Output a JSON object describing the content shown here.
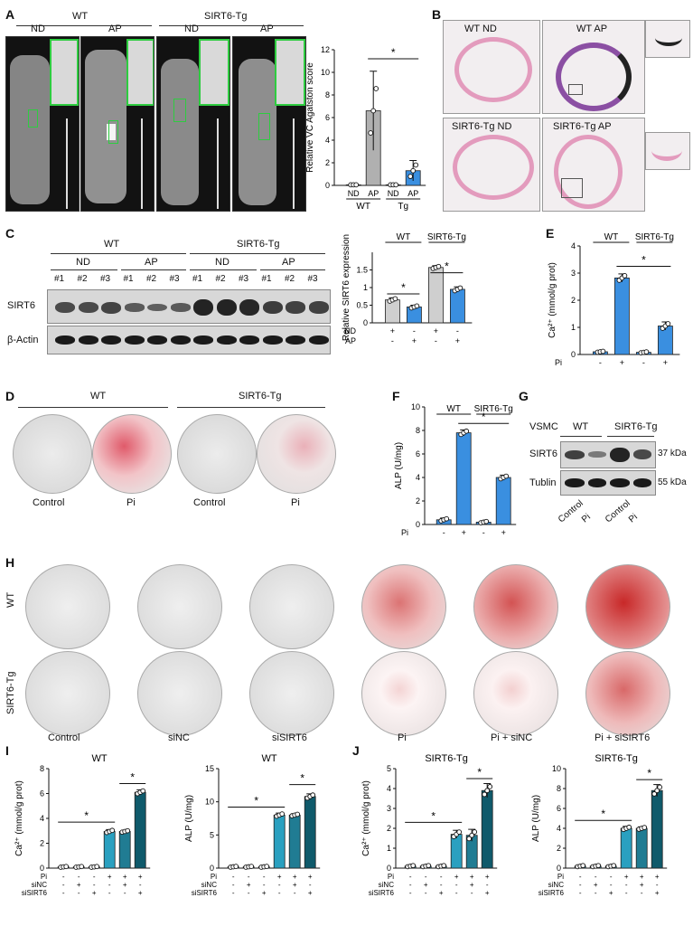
{
  "panel_letters": {
    "A": "A",
    "B": "B",
    "C": "C",
    "D": "D",
    "E": "E",
    "F": "F",
    "G": "G",
    "H": "H",
    "I": "I",
    "J": "J"
  },
  "panelA": {
    "wt": "WT",
    "tg": "SIRT6-Tg",
    "nd1": "ND",
    "ap1": "AP",
    "nd2": "ND",
    "ap2": "AP"
  },
  "panelB": {
    "wt_nd": "WT ND",
    "wt_ap": "WT AP",
    "tg_nd": "SIRT6-Tg ND",
    "tg_ap": "SIRT6-Tg AP"
  },
  "panelC": {
    "wt": "WT",
    "tg": "SIRT6-Tg",
    "nd1": "ND",
    "ap1": "AP",
    "nd2": "ND",
    "ap2": "AP",
    "lanes": [
      "#1",
      "#2",
      "#3",
      "#1",
      "#2",
      "#3",
      "#1",
      "#2",
      "#3",
      "#1",
      "#2",
      "#3"
    ],
    "sirt6": "SIRT6",
    "actin": "β-Actin",
    "band_sirt6": [
      0.45,
      0.45,
      0.5,
      0.25,
      0.2,
      0.25,
      0.9,
      0.9,
      0.85,
      0.6,
      0.55,
      0.55
    ]
  },
  "panelD": {
    "wt": "WT",
    "tg": "SIRT6-Tg",
    "c1": "Control",
    "p1": "Pi",
    "c2": "Control",
    "p2": "Pi"
  },
  "panelG": {
    "vsmc": "VSMC",
    "wt": "WT",
    "tg": "SIRT6-Tg",
    "sirt6": "SIRT6",
    "tublin": "Tublin",
    "kda37": "37 kDa",
    "kda55": "55 kDa",
    "lanes": [
      "Control",
      "Pi",
      "Control",
      "Pi"
    ]
  },
  "panelH": {
    "wt": "WT",
    "tg": "SIRT6-Tg",
    "cols": [
      "Control",
      "siNC",
      "siSIRT6",
      "Pi",
      "Pi + siNC",
      "Pi + siSIRT6"
    ],
    "stain_wt": [
      0,
      0,
      0,
      0.55,
      0.7,
      0.95
    ],
    "stain_tg": [
      0,
      0,
      0,
      0.1,
      0.12,
      0.6
    ]
  },
  "colors": {
    "grey": "#b0b0b0",
    "blue": "#3a8fe0",
    "lightgrey": "#cfcfcf",
    "teal1": "#2aa0c0",
    "teal2": "#207c93",
    "teal3": "#0f5a6b",
    "green": "#2ecc40"
  },
  "chart_data": [
    {
      "id": "A",
      "type": "bar",
      "ylabel": "Relative VC Agatston score",
      "ylim": [
        0,
        12
      ],
      "yticks": [
        0,
        2,
        4,
        6,
        8,
        10,
        12
      ],
      "categories": [
        "ND",
        "AP",
        "ND",
        "AP"
      ],
      "groups": [
        "WT",
        "Tg"
      ],
      "values": [
        0.05,
        6.6,
        0.05,
        1.3
      ],
      "errors": [
        0,
        3.5,
        0,
        0.9
      ],
      "sig": "*"
    },
    {
      "id": "C",
      "type": "bar",
      "ylabel": "Relative SIRT6 expression",
      "ylim": [
        0,
        2.0
      ],
      "yticks": [
        0,
        0.5,
        1.0,
        1.5
      ],
      "ytick_labels": [
        "0",
        "0.5",
        "1",
        "1.5"
      ],
      "groups": [
        "WT",
        "SIRT6-Tg"
      ],
      "rows": [
        {
          "label": "ND",
          "marks": [
            "+",
            "-",
            "+",
            "-"
          ]
        },
        {
          "label": "AP",
          "marks": [
            "-",
            "+",
            "-",
            "+"
          ]
        }
      ],
      "values": [
        0.65,
        0.45,
        1.57,
        0.95
      ],
      "errors": [
        0.06,
        0.05,
        0.05,
        0.07
      ],
      "sig": "*"
    },
    {
      "id": "E",
      "type": "bar",
      "ylabel": "Ca²⁺ (mmol/g prot)",
      "ylim": [
        0,
        4
      ],
      "yticks": [
        0,
        1,
        2,
        3,
        4
      ],
      "groups": [
        "WT",
        "SIRT6-Tg"
      ],
      "rows": [
        {
          "label": "Pi",
          "marks": [
            "-",
            "+",
            "-",
            "+"
          ]
        }
      ],
      "values": [
        0.1,
        2.82,
        0.08,
        1.05
      ],
      "errors": [
        0.03,
        0.15,
        0.03,
        0.15
      ],
      "sig": "*"
    },
    {
      "id": "F",
      "type": "bar",
      "ylabel": "ALP (U/mg)",
      "ylim": [
        0,
        10
      ],
      "yticks": [
        0,
        2,
        4,
        6,
        8,
        10
      ],
      "groups": [
        "WT",
        "SIRT6-Tg"
      ],
      "rows": [
        {
          "label": "Pi",
          "marks": [
            "-",
            "+",
            "-",
            "+"
          ]
        }
      ],
      "values": [
        0.4,
        7.8,
        0.2,
        4.0
      ],
      "errors": [
        0.15,
        0.25,
        0.1,
        0.2
      ],
      "sig": "*"
    },
    {
      "id": "I1",
      "type": "bar",
      "title": "WT",
      "ylabel": "Ca²⁺ (mmol/g prot)",
      "ylim": [
        0,
        8
      ],
      "yticks": [
        0,
        2,
        4,
        6,
        8
      ],
      "rows": [
        {
          "label": "Pi",
          "marks": [
            "-",
            "-",
            "-",
            "+",
            "+",
            "+"
          ]
        },
        {
          "label": "siNC",
          "marks": [
            "-",
            "+",
            "-",
            "-",
            "+",
            "-"
          ]
        },
        {
          "label": "siSIRT6",
          "marks": [
            "-",
            "-",
            "+",
            "-",
            "-",
            "+"
          ]
        }
      ],
      "values": [
        0.1,
        0.1,
        0.1,
        2.95,
        2.95,
        6.1
      ],
      "errors": [
        0.05,
        0.05,
        0.05,
        0.15,
        0.1,
        0.2
      ],
      "sig": "*"
    },
    {
      "id": "I2",
      "type": "bar",
      "title": "WT",
      "ylabel": "ALP (U/mg)",
      "ylim": [
        0,
        15
      ],
      "yticks": [
        0,
        5,
        10,
        15
      ],
      "rows": [
        {
          "label": "Pi",
          "marks": [
            "-",
            "-",
            "-",
            "+",
            "+",
            "+"
          ]
        },
        {
          "label": "siNC",
          "marks": [
            "-",
            "+",
            "-",
            "-",
            "+",
            "-"
          ]
        },
        {
          "label": "siSIRT6",
          "marks": [
            "-",
            "-",
            "+",
            "-",
            "-",
            "+"
          ]
        }
      ],
      "values": [
        0.2,
        0.2,
        0.2,
        8.0,
        8.0,
        10.8
      ],
      "errors": [
        0.1,
        0.1,
        0.1,
        0.3,
        0.2,
        0.4
      ],
      "sig": "*"
    },
    {
      "id": "J1",
      "type": "bar",
      "title": "SIRT6-Tg",
      "ylabel": "Ca²⁺ (mmol/g prot)",
      "ylim": [
        0,
        5
      ],
      "yticks": [
        0,
        1,
        2,
        3,
        4,
        5
      ],
      "rows": [
        {
          "label": "Pi",
          "marks": [
            "-",
            "-",
            "-",
            "+",
            "+",
            "+"
          ]
        },
        {
          "label": "siNC",
          "marks": [
            "-",
            "+",
            "-",
            "-",
            "+",
            "-"
          ]
        },
        {
          "label": "siSIRT6",
          "marks": [
            "-",
            "-",
            "+",
            "-",
            "-",
            "+"
          ]
        }
      ],
      "values": [
        0.1,
        0.1,
        0.1,
        1.7,
        1.65,
        3.9
      ],
      "errors": [
        0.05,
        0.05,
        0.05,
        0.2,
        0.3,
        0.35
      ],
      "sig": "*"
    },
    {
      "id": "J2",
      "type": "bar",
      "title": "SIRT6-Tg",
      "ylabel": "ALP (U/mg)",
      "ylim": [
        0,
        10
      ],
      "yticks": [
        0,
        2,
        4,
        6,
        8,
        10
      ],
      "rows": [
        {
          "label": "Pi",
          "marks": [
            "-",
            "-",
            "-",
            "+",
            "+",
            "+"
          ]
        },
        {
          "label": "siNC",
          "marks": [
            "-",
            "+",
            "-",
            "-",
            "+",
            "-"
          ]
        },
        {
          "label": "siSIRT6",
          "marks": [
            "-",
            "-",
            "+",
            "-",
            "-",
            "+"
          ]
        }
      ],
      "values": [
        0.2,
        0.2,
        0.2,
        4.0,
        4.0,
        7.8
      ],
      "errors": [
        0.1,
        0.1,
        0.1,
        0.2,
        0.15,
        0.6
      ],
      "sig": "*"
    }
  ]
}
